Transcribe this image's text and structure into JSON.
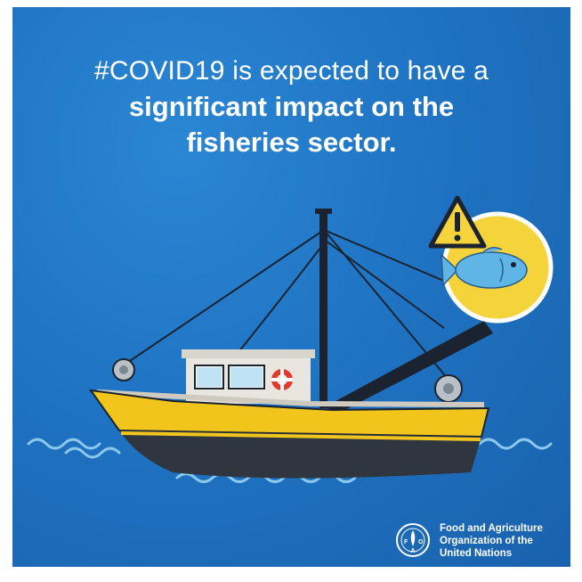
{
  "headline": {
    "line1": "#COVID19 is expected to have a",
    "line2": "significant impact on the",
    "line3": "fisheries sector."
  },
  "illustration": {
    "boat": "fishing-boat",
    "warning_icon": "warning-icon",
    "fish_icon": "fish-icon"
  },
  "logo": {
    "emblem_letters": "FAO",
    "line1": "Food and Agriculture",
    "line2": "Organization of the",
    "line3": "United Nations"
  },
  "colors": {
    "background": "#1f74c3",
    "hull_yellow": "#f2c51c",
    "hull_dark": "#2f3640",
    "fish_circle": "#f5d33a",
    "fish_body": "#5fb5e6",
    "wave": "#7fc0ea"
  }
}
